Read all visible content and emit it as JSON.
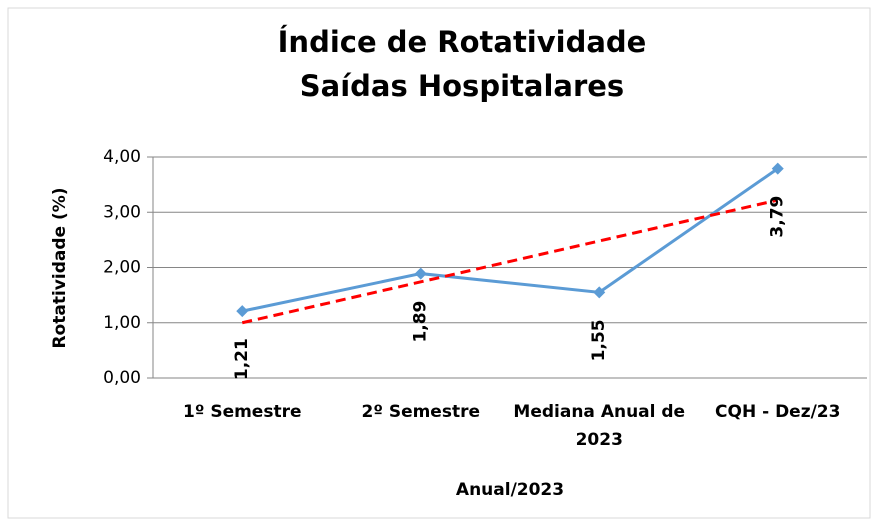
{
  "chart_data": {
    "type": "line",
    "title": [
      "Índice de Rotatividade",
      "Saídas Hospitalares"
    ],
    "x_label": "Anual/2023",
    "y_label": "Rotatividade (%)",
    "categories": [
      "1º Semestre",
      "2º Semestre",
      "Mediana Anual de 2023",
      "CQH - Dez/23"
    ],
    "series": [
      {
        "color": "#5b9bd5",
        "values": [
          1.21,
          1.89,
          1.55,
          3.79
        ],
        "value_labels": [
          "1,21",
          "1,89",
          "1,55",
          "3,79"
        ],
        "value_label_colors": [
          "#000000",
          "#000000",
          "#000000",
          "#ff0000"
        ]
      }
    ],
    "trendline": {
      "kind": "linear",
      "color": "#ff0000"
    },
    "ylim": [
      0,
      4
    ],
    "yticks": [
      {
        "value": 0,
        "label": "0,00"
      },
      {
        "value": 1,
        "label": "1,00"
      },
      {
        "value": 2,
        "label": "2,00"
      },
      {
        "value": 3,
        "label": "3,00"
      },
      {
        "value": 4,
        "label": "4,00"
      }
    ],
    "grid": true
  }
}
